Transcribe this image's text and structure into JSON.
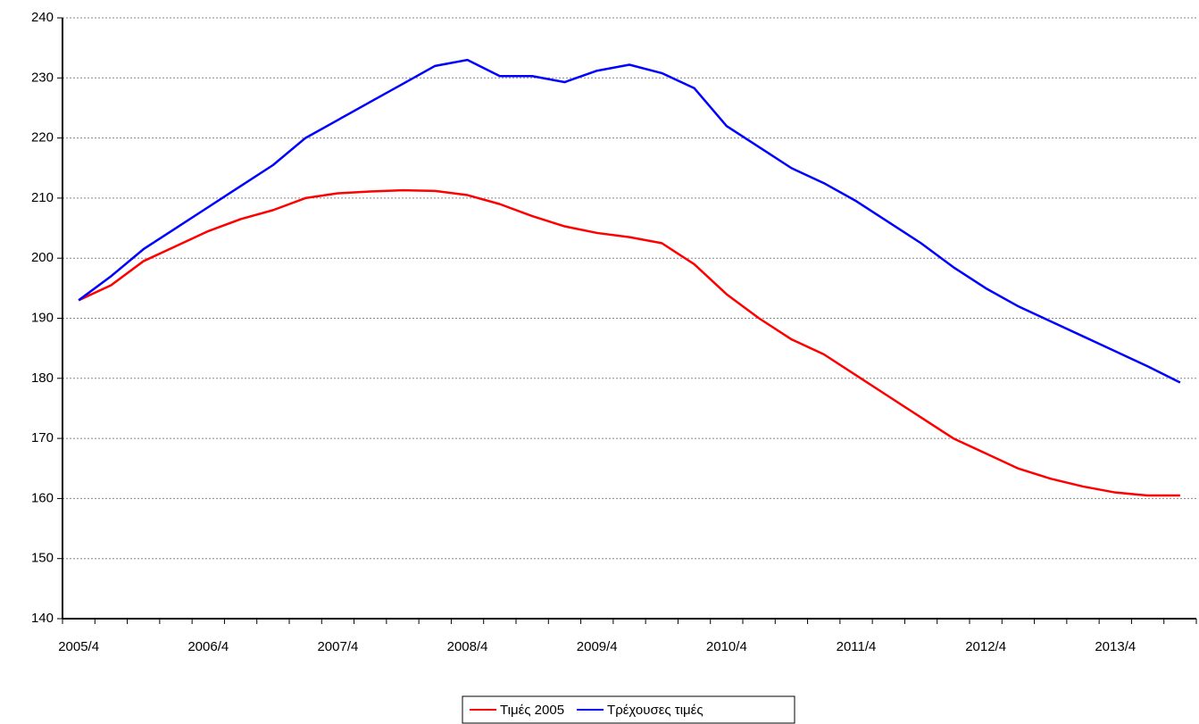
{
  "chart_data": {
    "type": "line",
    "categories": [
      "2005/4",
      null,
      null,
      null,
      "2006/4",
      null,
      null,
      null,
      "2007/4",
      null,
      null,
      null,
      "2008/4",
      null,
      null,
      null,
      "2009/4",
      null,
      null,
      null,
      "2010/4",
      null,
      null,
      null,
      "2011/4",
      null,
      null,
      null,
      "2012/4",
      null,
      null,
      null,
      "2013/4",
      null,
      null
    ],
    "series": [
      {
        "name": "Τιμές 2005",
        "color": "#ff0000",
        "values": [
          193,
          195.5,
          199.5,
          202,
          204.5,
          206.5,
          208,
          210,
          210.8,
          211.1,
          211.3,
          211.2,
          210.5,
          209,
          207,
          205.3,
          204.2,
          203.5,
          202.5,
          199,
          194,
          190,
          186.5,
          184,
          180.5,
          177,
          173.5,
          170,
          167.5,
          165,
          163.3,
          162,
          161,
          160.5,
          160.5
        ]
      },
      {
        "name": "Τρέχουσες τιμές",
        "color": "#0000ff",
        "values": [
          193,
          197,
          201.5,
          205,
          208.5,
          212,
          215.5,
          220,
          223,
          226,
          229,
          232,
          233,
          230.3,
          230.3,
          229.3,
          231.2,
          232.2,
          230.8,
          228.3,
          222,
          218.5,
          215,
          212.5,
          209.5,
          206,
          202.5,
          198.5,
          195,
          192,
          189.5,
          187,
          184.5,
          182,
          179.3
        ]
      }
    ],
    "ylim": [
      140,
      240
    ],
    "yticks": [
      140,
      150,
      160,
      170,
      180,
      190,
      200,
      210,
      220,
      230,
      240
    ],
    "grid": true,
    "legend": "bottom"
  }
}
